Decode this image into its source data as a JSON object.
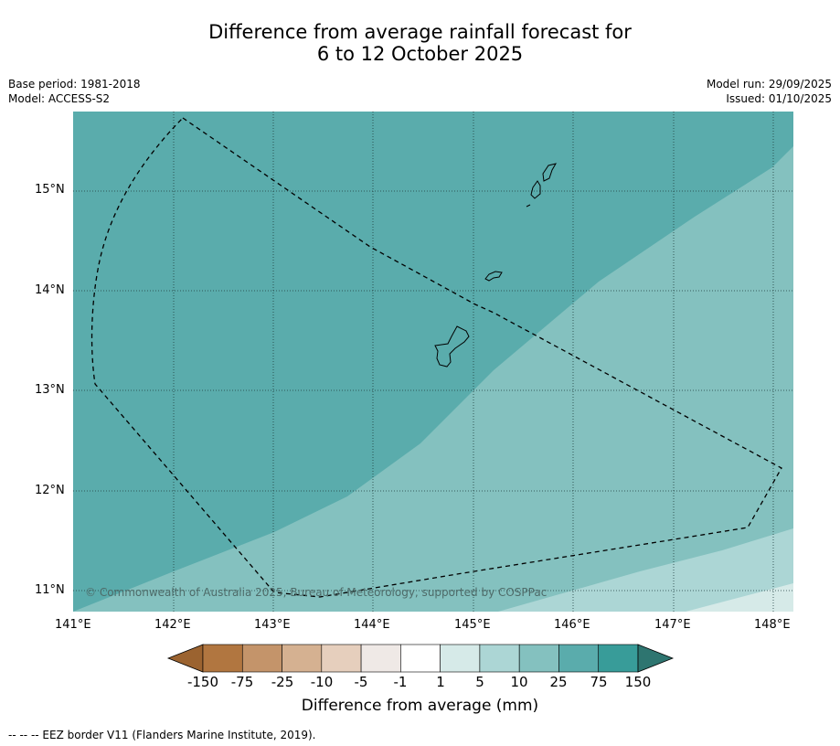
{
  "title": {
    "line1": "Difference from average rainfall forecast for",
    "line2": "6 to 12 October 2025"
  },
  "meta_left": {
    "base_period": "Base period: 1981-2018",
    "model": "Model: ACCESS-S2"
  },
  "meta_right": {
    "model_run": "Model run: 29/09/2025",
    "issued": "Issued: 01/10/2025"
  },
  "map": {
    "lat_labels": [
      "15°N",
      "14°N",
      "13°N",
      "12°N",
      "11°N"
    ],
    "lon_labels": [
      "141°E",
      "142°E",
      "143°E",
      "144°E",
      "145°E",
      "146°E",
      "147°E",
      "148°E"
    ],
    "copyright": "© Commonwealth of Australia 2025, Bureau of Meteorology, supported by COSPPac"
  },
  "colorbar": {
    "labels": [
      "-150",
      "-75",
      "-25",
      "-10",
      "-5",
      "-1",
      "1",
      "5",
      "10",
      "25",
      "75",
      "150"
    ],
    "colors": {
      "below_150": "#9b6330",
      "c1": "#b17640",
      "c2": "#c4946a",
      "c3": "#d5b191",
      "c4": "#e6cfbd",
      "c5": "#efe9e6",
      "c6": "#ffffff",
      "c7": "#d6eae8",
      "c8": "#acd6d5",
      "c9": "#84c1bf",
      "c10": "#5aacac",
      "c11": "#389c99",
      "above_150": "#2e7570"
    },
    "title": "Difference from average (mm)"
  },
  "footnote": "--  --  -- EEZ border V11 (Flanders Marine Institute, 2019)."
}
